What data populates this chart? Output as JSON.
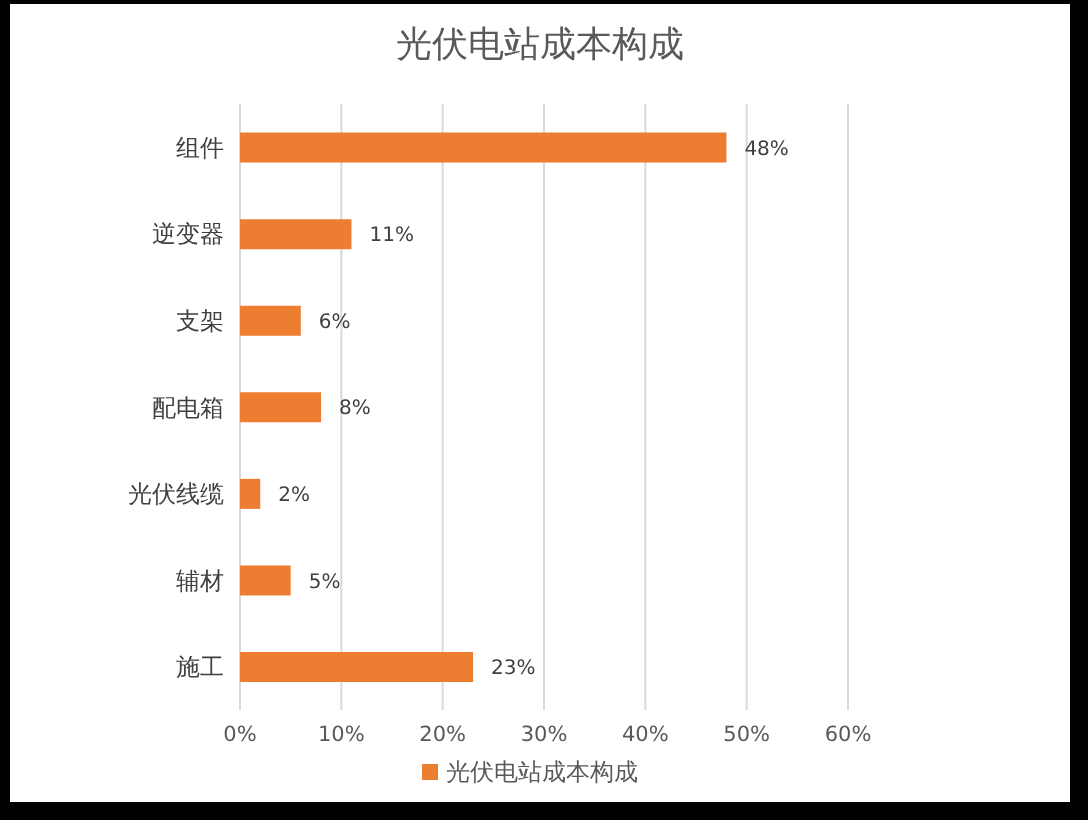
{
  "chart_data": {
    "type": "bar",
    "orientation": "horizontal",
    "title": "光伏电站成本构成",
    "categories": [
      "组件",
      "逆变器",
      "支架",
      "配电箱",
      "光伏线缆",
      "辅材",
      "施工"
    ],
    "series": [
      {
        "name": "光伏电站成本构成",
        "color": "#ed7d31",
        "values": [
          48,
          11,
          6,
          8,
          2,
          5,
          23
        ],
        "value_labels": [
          "48%",
          "11%",
          "6%",
          "8%",
          "2%",
          "5%",
          "23%"
        ]
      }
    ],
    "xlim": [
      0,
      60
    ],
    "xticks": [
      {
        "value": 0,
        "label": "0%"
      },
      {
        "value": 10,
        "label": "10%"
      },
      {
        "value": 20,
        "label": "20%"
      },
      {
        "value": 30,
        "label": "30%"
      },
      {
        "value": 40,
        "label": "40%"
      },
      {
        "value": 50,
        "label": "50%"
      },
      {
        "value": 60,
        "label": "60%"
      }
    ],
    "grid": "x",
    "legend": "bottom"
  }
}
